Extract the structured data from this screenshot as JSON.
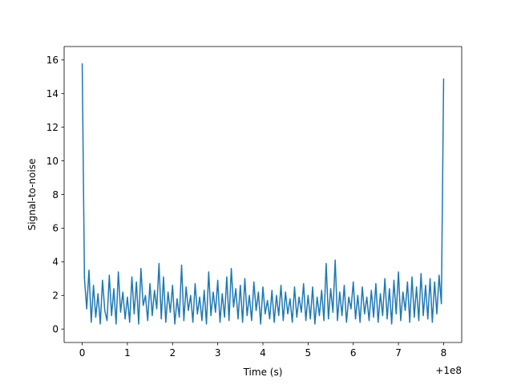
{
  "chart_data": {
    "type": "line",
    "title": "",
    "xlabel": "Time (s)",
    "ylabel": "Signal-to-noise",
    "x_offset_label": "+1e8",
    "xlim": [
      -0.4,
      8.4
    ],
    "ylim": [
      -0.8,
      16.8
    ],
    "xticks": [
      0,
      1,
      2,
      3,
      4,
      5,
      6,
      7,
      8
    ],
    "xtick_labels": [
      "0",
      "1",
      "2",
      "3",
      "4",
      "5",
      "6",
      "7",
      "8"
    ],
    "yticks": [
      0,
      2,
      4,
      6,
      8,
      10,
      12,
      14,
      16
    ],
    "ytick_labels": [
      "0",
      "2",
      "4",
      "6",
      "8",
      "10",
      "12",
      "14",
      "16"
    ],
    "grid": false,
    "color": "#1f77b4",
    "series": [
      {
        "x": [
          0.0,
          0.05,
          0.1,
          0.15,
          0.2,
          0.25,
          0.3,
          0.35,
          0.4,
          0.45,
          0.5,
          0.55,
          0.6,
          0.65,
          0.7,
          0.75,
          0.8,
          0.85,
          0.9,
          0.95,
          1.0,
          1.05,
          1.1,
          1.15,
          1.2,
          1.25,
          1.3,
          1.35,
          1.4,
          1.45,
          1.5,
          1.55,
          1.6,
          1.65,
          1.7,
          1.75,
          1.8,
          1.85,
          1.9,
          1.95,
          2.0,
          2.05,
          2.1,
          2.15,
          2.2,
          2.25,
          2.3,
          2.35,
          2.4,
          2.45,
          2.5,
          2.55,
          2.6,
          2.65,
          2.7,
          2.75,
          2.8,
          2.85,
          2.9,
          2.95,
          3.0,
          3.05,
          3.1,
          3.15,
          3.2,
          3.25,
          3.3,
          3.35,
          3.4,
          3.45,
          3.5,
          3.55,
          3.6,
          3.65,
          3.7,
          3.75,
          3.8,
          3.85,
          3.9,
          3.95,
          4.0,
          4.05,
          4.1,
          4.15,
          4.2,
          4.25,
          4.3,
          4.35,
          4.4,
          4.45,
          4.5,
          4.55,
          4.6,
          4.65,
          4.7,
          4.75,
          4.8,
          4.85,
          4.9,
          4.95,
          5.0,
          5.05,
          5.1,
          5.15,
          5.2,
          5.25,
          5.3,
          5.35,
          5.4,
          5.45,
          5.5,
          5.55,
          5.6,
          5.65,
          5.7,
          5.75,
          5.8,
          5.85,
          5.9,
          5.95,
          6.0,
          6.05,
          6.1,
          6.15,
          6.2,
          6.25,
          6.3,
          6.35,
          6.4,
          6.45,
          6.5,
          6.55,
          6.6,
          6.65,
          6.7,
          6.75,
          6.8,
          6.85,
          6.9,
          6.95,
          7.0,
          7.05,
          7.1,
          7.15,
          7.2,
          7.25,
          7.3,
          7.35,
          7.4,
          7.45,
          7.5,
          7.55,
          7.6,
          7.65,
          7.7,
          7.75,
          7.8,
          7.85,
          7.9,
          7.95,
          8.0
        ],
        "y": [
          15.8,
          3.0,
          1.2,
          3.5,
          0.4,
          2.6,
          0.7,
          2.1,
          0.3,
          2.9,
          1.1,
          0.5,
          3.2,
          0.8,
          2.4,
          0.3,
          3.4,
          1.0,
          2.2,
          0.6,
          1.9,
          0.4,
          3.1,
          0.9,
          2.8,
          0.3,
          3.6,
          1.4,
          2.0,
          0.5,
          2.7,
          0.8,
          2.3,
          1.2,
          3.9,
          0.6,
          3.1,
          0.4,
          2.2,
          1.0,
          2.6,
          0.3,
          1.8,
          0.7,
          3.8,
          0.5,
          2.5,
          1.1,
          2.0,
          0.4,
          2.7,
          0.9,
          1.9,
          0.5,
          2.3,
          0.3,
          3.4,
          0.8,
          2.2,
          1.0,
          2.9,
          0.4,
          2.1,
          0.7,
          3.1,
          0.5,
          3.6,
          1.3,
          2.4,
          0.6,
          2.6,
          0.4,
          3.0,
          0.8,
          2.0,
          0.5,
          2.8,
          1.1,
          2.2,
          0.3,
          2.5,
          0.9,
          1.7,
          0.6,
          2.3,
          0.4,
          2.0,
          0.8,
          2.6,
          0.5,
          2.2,
          0.9,
          1.8,
          0.4,
          2.5,
          0.7,
          1.9,
          1.0,
          2.7,
          0.5,
          2.0,
          0.6,
          2.5,
          0.3,
          1.9,
          0.8,
          2.3,
          0.5,
          3.9,
          0.6,
          2.4,
          1.0,
          4.1,
          0.5,
          2.2,
          0.8,
          2.6,
          0.4,
          1.9,
          1.2,
          2.8,
          0.6,
          2.0,
          0.4,
          2.5,
          0.9,
          1.9,
          0.5,
          2.3,
          0.7,
          2.7,
          0.4,
          2.1,
          0.8,
          3.0,
          0.6,
          2.4,
          0.3,
          2.9,
          0.9,
          3.4,
          0.5,
          2.2,
          1.1,
          2.8,
          0.4,
          3.1,
          0.7,
          2.5,
          0.5,
          3.3,
          0.8,
          2.6,
          0.6,
          3.0,
          0.4,
          2.8,
          0.9,
          3.2,
          1.5,
          14.9
        ]
      }
    ]
  }
}
